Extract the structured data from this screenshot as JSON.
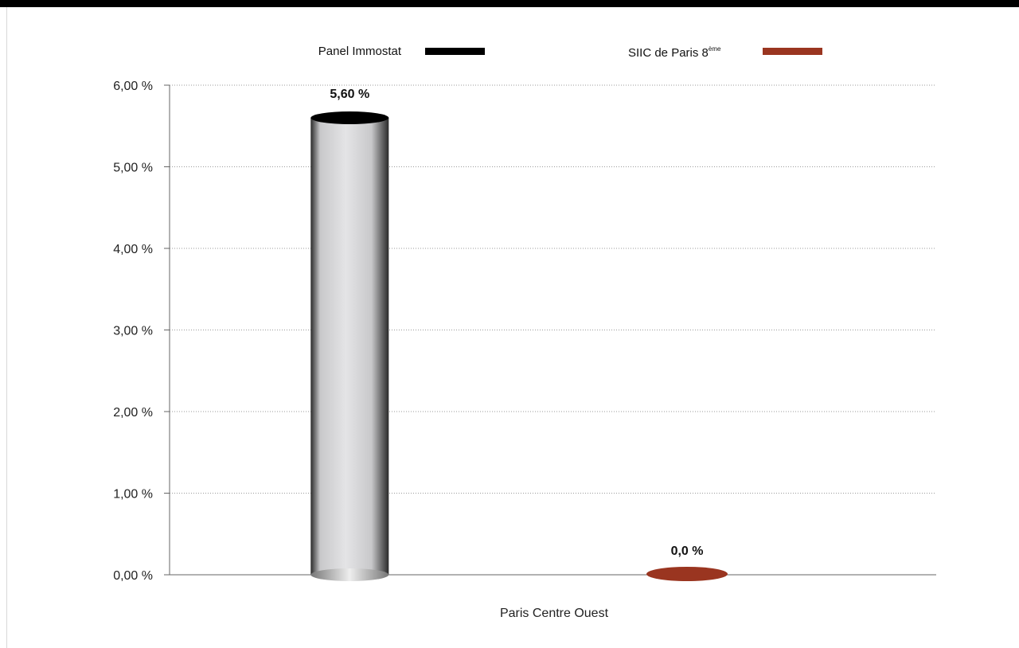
{
  "chart_data": {
    "type": "bar",
    "categories": [
      "Paris Centre Ouest"
    ],
    "series": [
      {
        "name": "Panel Immostat",
        "values": [
          5.6
        ],
        "label": "5,60 %",
        "color": "#000000",
        "body_colors": {
          "light": "#e4e4e6",
          "mid": "#c8c8ca",
          "dark": "#2a2a2a"
        }
      },
      {
        "name": "SIIC de Paris 8",
        "name_sup": "ème",
        "values": [
          0.0
        ],
        "label": "0,0 %",
        "color": "#9a3520"
      }
    ],
    "ylim": [
      0,
      6
    ],
    "yticks": [
      {
        "value": 0,
        "label": "0,00 %"
      },
      {
        "value": 1,
        "label": "1,00 %"
      },
      {
        "value": 2,
        "label": "2,00 %"
      },
      {
        "value": 3,
        "label": "3,00 %"
      },
      {
        "value": 4,
        "label": "4,00 %"
      },
      {
        "value": 5,
        "label": "5,00 %"
      },
      {
        "value": 6,
        "label": "6,00 %"
      }
    ],
    "grid": true,
    "legend_position": "top",
    "bar_shape": "cylinder"
  }
}
